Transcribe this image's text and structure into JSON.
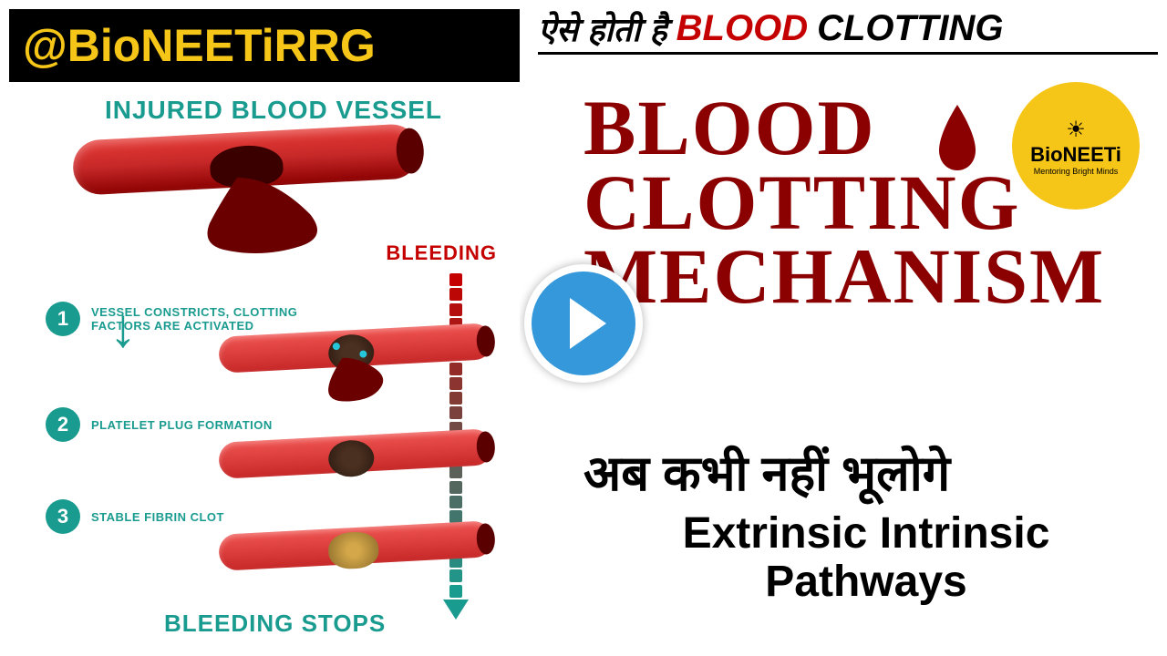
{
  "banner": {
    "handle": "@BioNEETiRRG",
    "bg": "#000000",
    "fg": "#f5c518"
  },
  "topRight": {
    "hindi": "ऐसे होती है",
    "blood": "BLOOD",
    "clotting": "CLOTTING"
  },
  "logo": {
    "brand": "BioNEETi",
    "tagline": "Mentoring Bright Minds",
    "bg": "#f5c518"
  },
  "mainTitle": {
    "line1": "BLOOD",
    "line2": "CLOTTING",
    "line3": "MECHANISM",
    "color": "#8b0000"
  },
  "hindiSub": "अब कभी नहीं भूलोगे",
  "subtitle": {
    "line1": "Extrinsic Intrinsic",
    "line2": "Pathways"
  },
  "play": {
    "bg": "#3498db",
    "icon": "#ffffff"
  },
  "diagram": {
    "title": "INJURED BLOOD VESSEL",
    "titleColor": "#1a9b8f",
    "bleedingLabel": "BLEEDING",
    "stopsLabel": "BLEEDING STOPS",
    "vesselColor": "#c62828",
    "steps": [
      {
        "num": "1",
        "label": "VESSEL CONSTRICTS, CLOTTING FACTORS ARE ACTIVATED"
      },
      {
        "num": "2",
        "label": "PLATELET PLUG FORMATION"
      },
      {
        "num": "3",
        "label": "STABLE FIBRIN CLOT"
      }
    ],
    "gradient": {
      "dotCount": 22,
      "startColor": "#c40000",
      "endColor": "#1a9b8f"
    }
  }
}
